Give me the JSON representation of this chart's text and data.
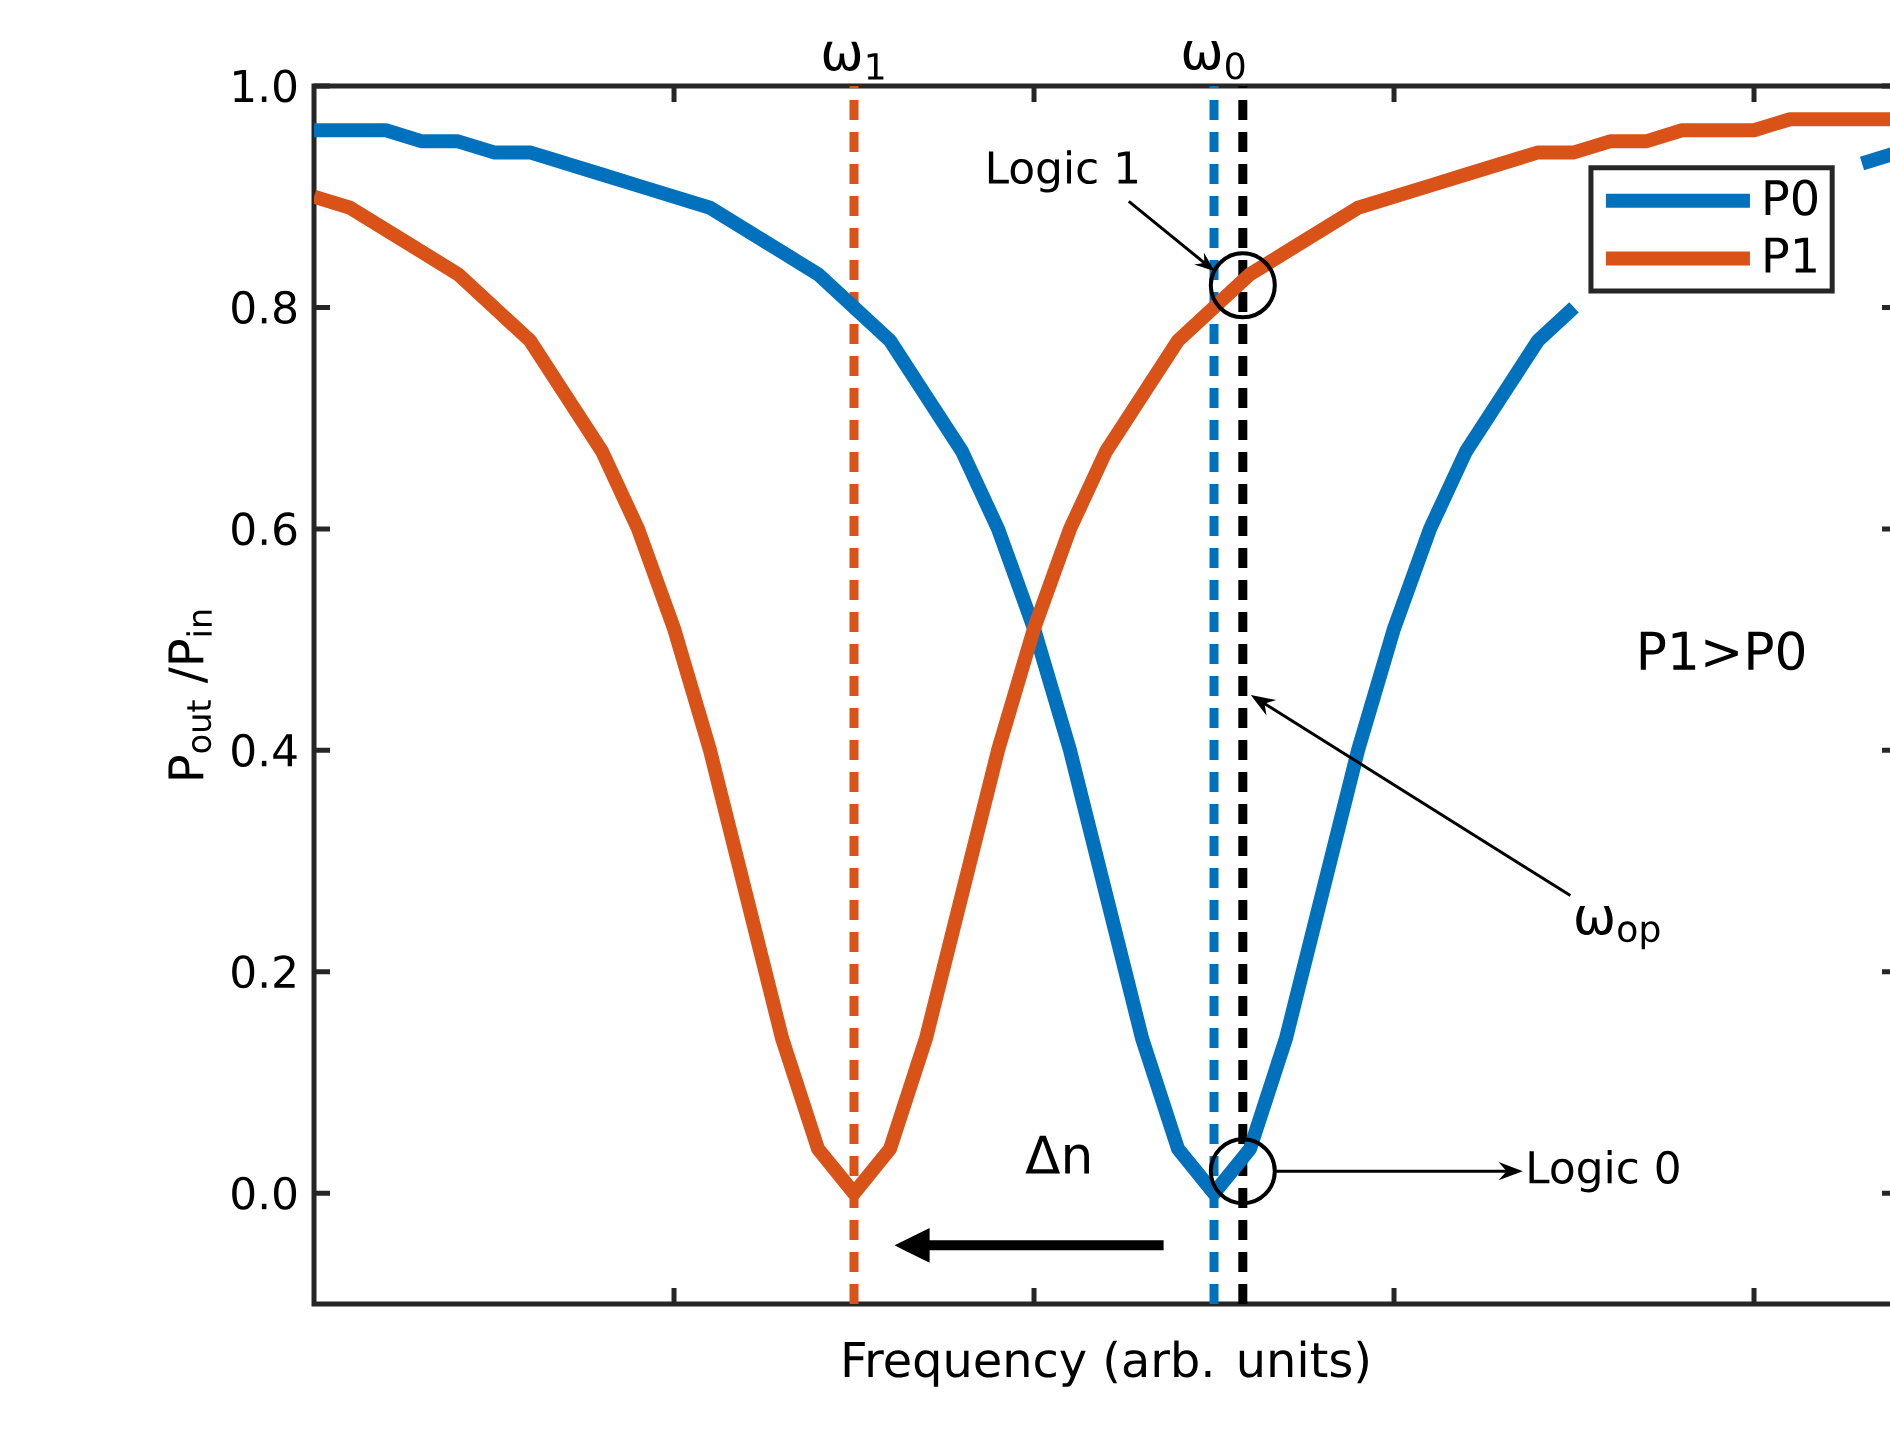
{
  "chart_data": {
    "type": "line",
    "xlabel": "Frequency (arb. units)",
    "ylabel": "P$_{out}$ /P$_{in}$",
    "categories": [
      null,
      null,
      null,
      null,
      null,
      null,
      null,
      null,
      null,
      null,
      null,
      null,
      null,
      null,
      null,
      null,
      null,
      null,
      null,
      null,
      null,
      null,
      null,
      null,
      null,
      null,
      null,
      null,
      null,
      null,
      null,
      null,
      null,
      null,
      null,
      null,
      null,
      null,
      null,
      null,
      null,
      null,
      null,
      null,
      null
    ],
    "ylim": [
      -0.1,
      1.0
    ],
    "yticks": [
      {
        "value": 0,
        "label": "0.0"
      },
      {
        "value": 0.2,
        "label": "0.2"
      },
      {
        "value": 0.4,
        "label": "0.4"
      },
      {
        "value": 0.6,
        "label": "0.6"
      },
      {
        "value": 0.8,
        "label": "0.8"
      },
      {
        "value": 1.0,
        "label": "1.0"
      }
    ],
    "legend": "top right",
    "marker": "none",
    "line_style": "solid",
    "series": [
      {
        "name": "P0",
        "color": "#0072bd",
        "values": [
          0.96,
          0.96,
          0.96,
          0.95,
          0.95,
          0.94,
          0.94,
          0.93,
          0.92,
          0.91,
          0.9,
          0.89,
          0.87,
          0.85,
          0.83,
          0.8,
          0.77,
          0.72,
          0.67,
          0.6,
          0.51,
          0.4,
          0.27,
          0.14,
          0.04,
          0,
          0.04,
          0.14,
          0.27,
          0.4,
          0.51,
          0.6,
          0.67,
          0.72,
          0.77,
          0.8,
          null,
          null,
          null,
          null,
          null,
          null,
          null,
          0.93,
          0.94
        ]
      },
      {
        "name": "P1",
        "color": "#d95319",
        "values": [
          0.9,
          0.89,
          0.87,
          0.85,
          0.83,
          0.8,
          0.77,
          0.72,
          0.67,
          0.6,
          0.51,
          0.4,
          0.27,
          0.14,
          0.04,
          0,
          0.04,
          0.14,
          0.27,
          0.4,
          0.51,
          0.6,
          0.67,
          0.72,
          0.77,
          0.8,
          0.83,
          0.85,
          0.87,
          0.89,
          0.9,
          0.91,
          0.92,
          0.93,
          0.94,
          0.94,
          0.95,
          0.95,
          0.96,
          0.96,
          0.96,
          0.97,
          0.97,
          0.97,
          0.97
        ]
      }
    ],
    "annotations": [
      "ω$_{1}$",
      "ω$_{0}$",
      "ω$_{op}$",
      "Logic 1",
      "Logic 0",
      "P1>P0",
      "Δn"
    ]
  }
}
